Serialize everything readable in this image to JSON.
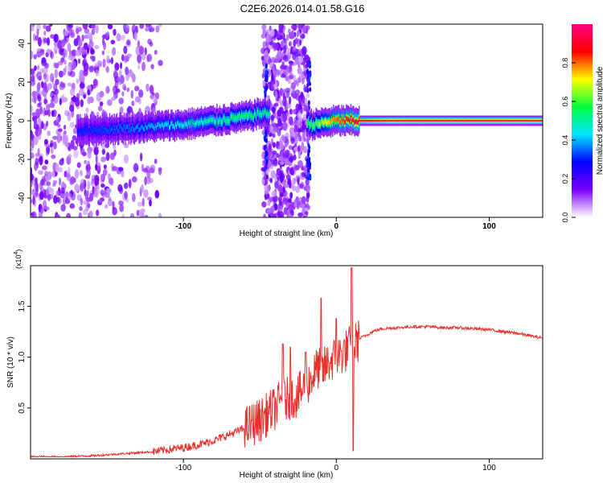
{
  "title": "C2E6.2026.014.01.58.G16",
  "chart_data": [
    {
      "type": "heatmap",
      "xlabel": "Height of straight line (km)",
      "ylabel": "Frequency (Hz)",
      "xlim": [
        -200,
        135
      ],
      "ylim": [
        -50,
        50
      ],
      "x_ticks": [
        "-100",
        "0",
        "100"
      ],
      "y_ticks": [
        "40",
        "20",
        "0",
        "-20",
        "-40"
      ],
      "colorbar": {
        "label": "Normalized spectral amplitude",
        "ticks": [
          "0.0",
          "0.2",
          "0.4",
          "0.6",
          "0.8"
        ],
        "range": [
          0,
          1
        ],
        "colors": [
          "#ffffff",
          "#7b00ff",
          "#0000ff",
          "#00e5ff",
          "#00ff3c",
          "#ffff00",
          "#ff0000",
          "#ff0080"
        ]
      },
      "ridge": [
        {
          "x": -170,
          "freq": -5,
          "amp": 0.3
        },
        {
          "x": -140,
          "freq": -4,
          "amp": 0.35
        },
        {
          "x": -120,
          "freq": -3,
          "amp": 0.4
        },
        {
          "x": -100,
          "freq": -2,
          "amp": 0.45
        },
        {
          "x": -80,
          "freq": 0,
          "amp": 0.5
        },
        {
          "x": -60,
          "freq": 2,
          "amp": 0.55
        },
        {
          "x": -48,
          "freq": 4,
          "amp": 0.5
        },
        {
          "x": -15,
          "freq": -2,
          "amp": 0.6
        },
        {
          "x": 0,
          "freq": 0,
          "amp": 0.8
        },
        {
          "x": 15,
          "freq": 0,
          "amp": 0.9
        },
        {
          "x": 50,
          "freq": 0,
          "amp": 0.98
        },
        {
          "x": 100,
          "freq": 0,
          "amp": 0.97
        },
        {
          "x": 135,
          "freq": 0,
          "amp": 0.95
        }
      ]
    },
    {
      "type": "line",
      "xlabel": "Height of straight line (km)",
      "ylabel": "SNR (10 * v/v)",
      "scale_label_base": "(x10",
      "scale_label_exp": "4",
      "scale_label_end": ")",
      "xlim": [
        -200,
        135
      ],
      "ylim": [
        0,
        1.9
      ],
      "x_ticks": [
        "-100",
        "0",
        "100"
      ],
      "y_ticks": [
        "0.5",
        "1.0",
        "1.5"
      ],
      "color": "#e8312b",
      "series": [
        {
          "x": [
            -200,
            -180,
            -160,
            -140,
            -120,
            -110,
            -100,
            -90,
            -80,
            -70,
            -60,
            -55,
            -50,
            -45,
            -40,
            -35,
            -30,
            -25,
            -20,
            -15,
            -12,
            -10,
            -5,
            0,
            5,
            8,
            10,
            12,
            15,
            20,
            25,
            30,
            40,
            50,
            60,
            70,
            80,
            90,
            100,
            110,
            120,
            130,
            135
          ],
          "values": [
            0.02,
            0.02,
            0.03,
            0.05,
            0.07,
            0.09,
            0.11,
            0.14,
            0.18,
            0.24,
            0.3,
            0.34,
            0.38,
            0.44,
            0.5,
            0.58,
            0.6,
            0.62,
            0.72,
            0.82,
            0.9,
            0.85,
            0.95,
            1.0,
            1.05,
            1.08,
            1.15,
            1.12,
            1.18,
            1.22,
            1.26,
            1.28,
            1.29,
            1.3,
            1.3,
            1.29,
            1.29,
            1.28,
            1.27,
            1.25,
            1.23,
            1.2,
            1.19
          ]
        }
      ],
      "spikes": [
        {
          "x": -35,
          "value": 1.13
        },
        {
          "x": -30,
          "value": 1.1
        },
        {
          "x": -20,
          "value": 1.05
        },
        {
          "x": -10,
          "value": 1.58
        },
        {
          "x": 0,
          "value": 1.38
        },
        {
          "x": 10,
          "value": 1.88
        },
        {
          "x": 11,
          "value": 0.08
        }
      ]
    }
  ]
}
